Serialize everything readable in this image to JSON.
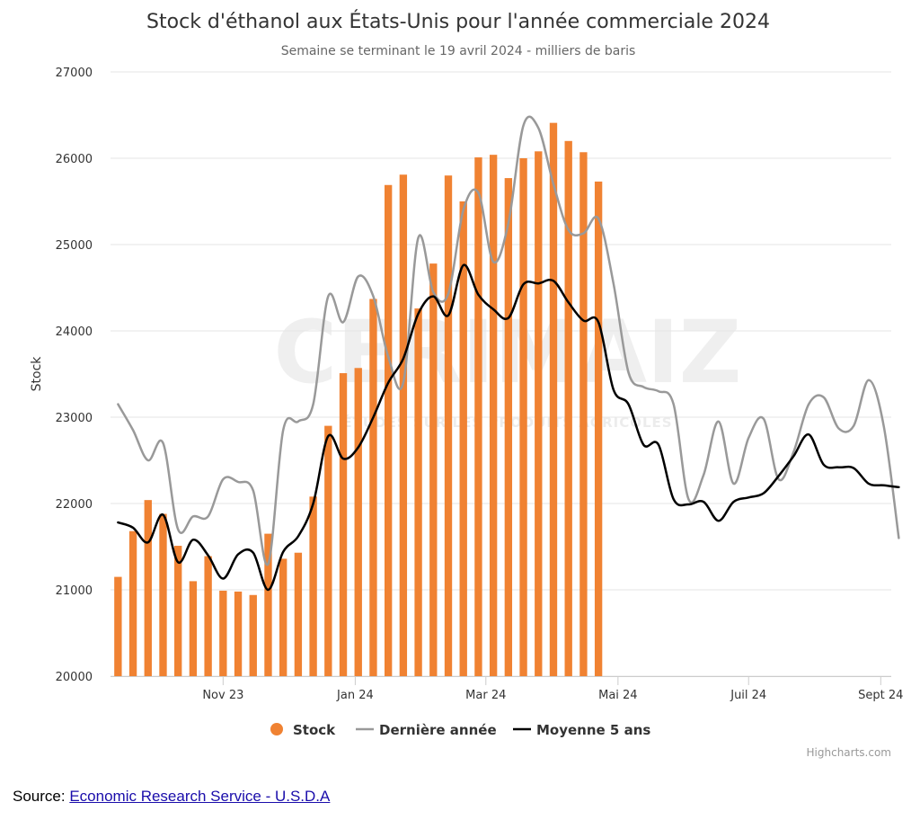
{
  "chart_data": {
    "type": "bar",
    "title": "Stock d'éthanol aux États-Unis pour l'année commerciale 2024",
    "subtitle": "Semaine se terminant le 19 avril 2024 - milliers de baris",
    "ylabel": "Stock",
    "ylim": [
      20000,
      27000
    ],
    "yticks": [
      "20000",
      "21000",
      "22000",
      "23000",
      "24000",
      "25000",
      "26000",
      "27000"
    ],
    "xticks": [
      {
        "label": "Nov 23",
        "week": 7.5
      },
      {
        "label": "Jan 24",
        "week": 16.3
      },
      {
        "label": "Mar 24",
        "week": 25.0
      },
      {
        "label": "Mai 24",
        "week": 33.8
      },
      {
        "label": "Juil 24",
        "week": 42.5
      },
      {
        "label": "Sept 24",
        "week": 51.3
      }
    ],
    "weeks": 52,
    "series": [
      {
        "name": "Stock",
        "kind": "bar",
        "color": "#f08232",
        "values": [
          21150,
          21680,
          22040,
          21880,
          21510,
          21100,
          21390,
          20990,
          20980,
          20940,
          21650,
          21360,
          21430,
          22080,
          22900,
          23510,
          23570,
          24370,
          25690,
          25810,
          24260,
          24780,
          25800,
          25500,
          26010,
          26040,
          25770,
          26000,
          26080,
          26410,
          26200,
          26070,
          25730
        ]
      },
      {
        "name": "Dernière année",
        "kind": "line",
        "color": "#999999",
        "values": [
          23150,
          22850,
          22500,
          22700,
          21700,
          21850,
          21850,
          22280,
          22250,
          22150,
          21300,
          22850,
          22950,
          23150,
          24400,
          24100,
          24630,
          24400,
          23700,
          23400,
          25080,
          24450,
          24430,
          25400,
          25600,
          24800,
          25250,
          26380,
          26350,
          25700,
          25170,
          25130,
          25300,
          24550,
          23520,
          23350,
          23300,
          23150,
          22050,
          22330,
          22950,
          22230,
          22760,
          22980,
          22280,
          22600,
          23150,
          23230,
          22870,
          22900,
          23430,
          22900,
          21600
        ]
      },
      {
        "name": "Moyenne 5 ans",
        "kind": "line",
        "color": "#000000",
        "values": [
          21780,
          21720,
          21550,
          21870,
          21320,
          21580,
          21400,
          21130,
          21410,
          21430,
          21000,
          21440,
          21620,
          22000,
          22780,
          22520,
          22650,
          23000,
          23400,
          23680,
          24200,
          24400,
          24180,
          24760,
          24420,
          24250,
          24150,
          24540,
          24550,
          24580,
          24330,
          24120,
          24100,
          23320,
          23150,
          22680,
          22680,
          22050,
          21990,
          22020,
          21800,
          22020,
          22070,
          22120,
          22320,
          22550,
          22800,
          22450,
          22420,
          22410,
          22230,
          22210,
          22190
        ]
      }
    ],
    "legend": {
      "position": "bottom",
      "items": [
        "Stock",
        "Dernière année",
        "Moyenne 5 ans"
      ]
    },
    "grid": true
  },
  "credits": "Highcharts.com",
  "watermark": {
    "big": "CERIMAIZ",
    "small": "ÉTUDES SUR LES PRODUITS AGRICOLES"
  },
  "source": {
    "label": "Source:",
    "link_text": "Economic Research Service - U.S.D.A"
  }
}
